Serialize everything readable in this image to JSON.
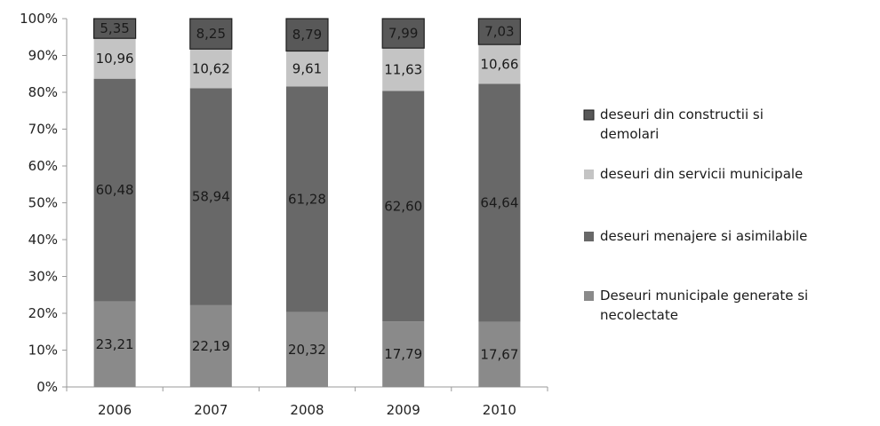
{
  "chart_data": {
    "type": "bar",
    "stacked": true,
    "percent": true,
    "categories": [
      "2006",
      "2007",
      "2008",
      "2009",
      "2010"
    ],
    "series": [
      {
        "name": "Deseuri municipale generate si necolectate",
        "color": "#8a8a8a",
        "values": [
          23.21,
          22.19,
          20.32,
          17.79,
          17.67
        ],
        "labels": [
          "23,21",
          "22,19",
          "20,32",
          "17,79",
          "17,67"
        ]
      },
      {
        "name": "deseuri menajere si asimilabile",
        "color": "#686868",
        "values": [
          60.48,
          58.94,
          61.28,
          62.6,
          64.64
        ],
        "labels": [
          "60,48",
          "58,94",
          "61,28",
          "62,60",
          "64,64"
        ]
      },
      {
        "name": "deseuri din servicii municipale",
        "color": "#c4c4c4",
        "values": [
          10.96,
          10.62,
          9.61,
          11.63,
          10.66
        ],
        "labels": [
          "10,96",
          "10,62",
          "9,61",
          "11,63",
          "10,66"
        ]
      },
      {
        "name": "deseuri din constructii si demolari",
        "color": "#585858",
        "values": [
          5.35,
          8.25,
          8.79,
          7.99,
          7.03
        ],
        "labels": [
          "5,35",
          "8,25",
          "8,79",
          "7,99",
          "7,03"
        ]
      }
    ],
    "y_ticks": [
      "0%",
      "10%",
      "20%",
      "30%",
      "40%",
      "50%",
      "60%",
      "70%",
      "80%",
      "90%",
      "100%"
    ],
    "ylim": [
      0,
      100
    ],
    "legend_position": "right",
    "legend_order": [
      3,
      2,
      1,
      0
    ],
    "grid": false
  }
}
